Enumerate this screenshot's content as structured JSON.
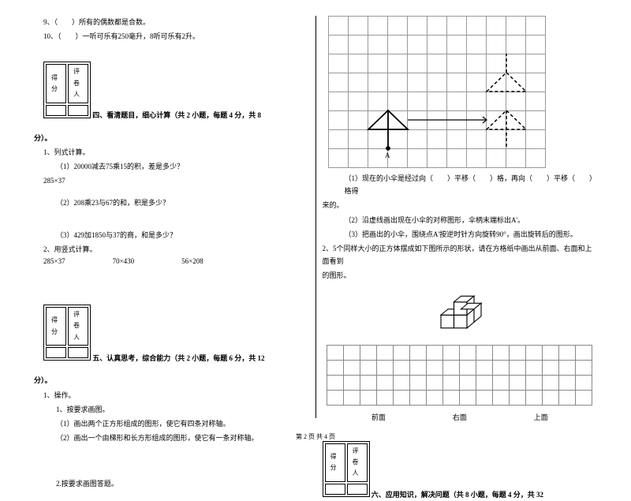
{
  "left": {
    "q9": "9、（　　）所有的偶数都是合数。",
    "q10": "10、（　　）一听可乐有250毫升，8听可乐有2升。",
    "scorebox": {
      "c1": "得分",
      "c2": "评卷人"
    },
    "s4_title": "四、看清题目，细心计算（共 2 小题，每题 4 分，共 8",
    "fen": "分）。",
    "s4_1": "1、列式计算。",
    "s4_1_1": "（1）20000减去75乘15的积，差是多少？",
    "s4_1_1r": "285×37",
    "s4_1_2": "（2）208乘23与67的和，积是多少？",
    "s4_1_3": "（3）429加1850与37的商，和是多少？",
    "s4_2": "2、用竖式计算。",
    "calc1": "285×37",
    "calc2": "70×430",
    "calc3": "56×208",
    "s5_title": "五、认真思考，综合能力（共 2 小题，每题 6 分，共 12",
    "s5_1": "1、操作。",
    "s5_1_1": "1、按要求画图。",
    "s5_1_1a": "（1）画出两个正方形组成的图形，使它有四条对称轴。",
    "s5_1_1b": "（2）画出一个由梯形和长方形组成的图形，使它有一条对称轴。",
    "s5_2": "2.按要求画图答题。"
  },
  "right": {
    "r1": "（1）现在的小伞是经过向（　　）平移（　　）格，再向（　　）平移（　　）格得",
    "r1b": "来的。",
    "r2": "（2）沿虚线画出现在小伞的对称图形，伞柄末端标出A'。",
    "r3": "（3）把画出的小伞，围绕点A'按逆时针方向旋转90°，画出旋转后的图形。",
    "r4": "2、5个同样大小的正方体摆成如下图所示的形状，请在方格纸中画出从前面、右面和上面看到",
    "r4b": "的图形。",
    "axis1": "前面",
    "axis2": "右面",
    "axis3": "上面",
    "s6_title": "六、应用知识，解决问题（共 8 小题，每题 4 分，共 32"
  },
  "footer": "第 2 页 共 4 页",
  "label_a": "A"
}
